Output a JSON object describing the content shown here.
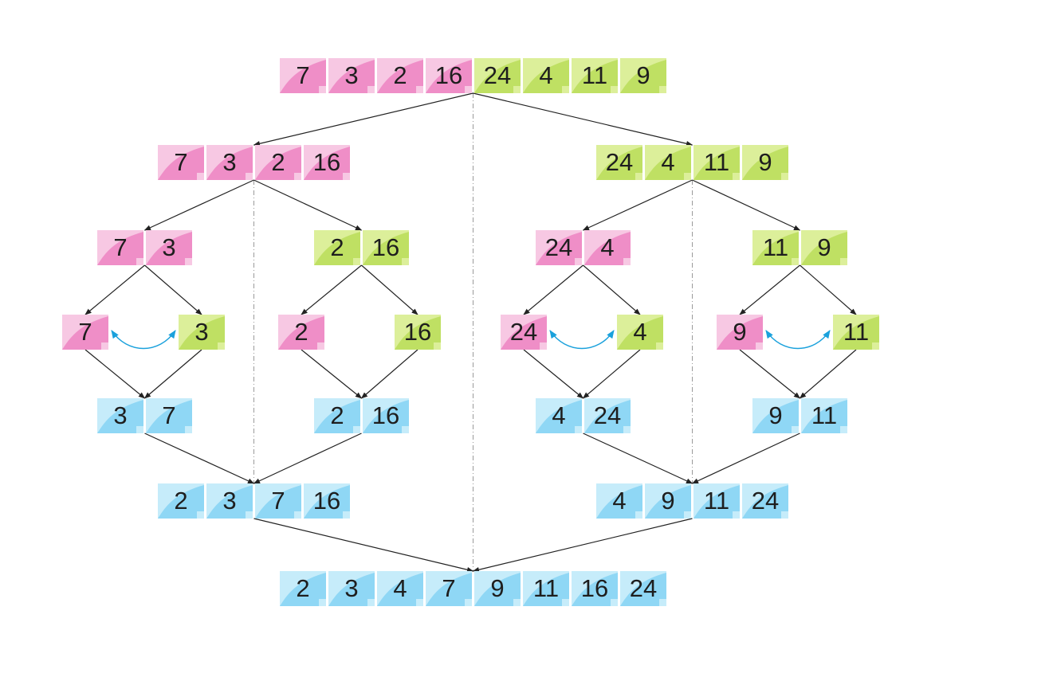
{
  "colors": {
    "pink_light": "#f7c8e3",
    "pink_dark": "#ef8ec7",
    "green_light": "#dcef9a",
    "green_dark": "#bfe063",
    "blue_light": "#c6ecfa",
    "blue_dark": "#8fd7f5",
    "arrow": "#222222",
    "divider": "#9a9a9a",
    "swap_arrow": "#1aa1dc"
  },
  "rows": {
    "input": {
      "cells": [
        {
          "v": "7",
          "c": "pink"
        },
        {
          "v": "3",
          "c": "pink"
        },
        {
          "v": "2",
          "c": "pink"
        },
        {
          "v": "16",
          "c": "pink"
        },
        {
          "v": "24",
          "c": "green"
        },
        {
          "v": "4",
          "c": "green"
        },
        {
          "v": "11",
          "c": "green"
        },
        {
          "v": "9",
          "c": "green"
        }
      ]
    },
    "split_left": {
      "cells": [
        {
          "v": "7",
          "c": "pink"
        },
        {
          "v": "3",
          "c": "pink"
        },
        {
          "v": "2",
          "c": "pink"
        },
        {
          "v": "16",
          "c": "pink"
        }
      ]
    },
    "split_right": {
      "cells": [
        {
          "v": "24",
          "c": "green"
        },
        {
          "v": "4",
          "c": "green"
        },
        {
          "v": "11",
          "c": "green"
        },
        {
          "v": "9",
          "c": "green"
        }
      ]
    },
    "pair_1": {
      "cells": [
        {
          "v": "7",
          "c": "pink"
        },
        {
          "v": "3",
          "c": "pink"
        }
      ]
    },
    "pair_2": {
      "cells": [
        {
          "v": "2",
          "c": "green"
        },
        {
          "v": "16",
          "c": "green"
        }
      ]
    },
    "pair_3": {
      "cells": [
        {
          "v": "24",
          "c": "pink"
        },
        {
          "v": "4",
          "c": "pink"
        }
      ]
    },
    "pair_4": {
      "cells": [
        {
          "v": "11",
          "c": "green"
        },
        {
          "v": "9",
          "c": "green"
        }
      ]
    },
    "single_1": {
      "cells": [
        {
          "v": "7",
          "c": "pink"
        }
      ]
    },
    "single_2": {
      "cells": [
        {
          "v": "3",
          "c": "green"
        }
      ]
    },
    "single_3": {
      "cells": [
        {
          "v": "2",
          "c": "pink"
        }
      ]
    },
    "single_4": {
      "cells": [
        {
          "v": "16",
          "c": "green"
        }
      ]
    },
    "single_5": {
      "cells": [
        {
          "v": "24",
          "c": "pink"
        }
      ]
    },
    "single_6": {
      "cells": [
        {
          "v": "4",
          "c": "green"
        }
      ]
    },
    "single_7": {
      "cells": [
        {
          "v": "9",
          "c": "pink"
        }
      ]
    },
    "single_8": {
      "cells": [
        {
          "v": "11",
          "c": "green"
        }
      ]
    },
    "merged_pair_1": {
      "cells": [
        {
          "v": "3",
          "c": "blue"
        },
        {
          "v": "7",
          "c": "blue"
        }
      ]
    },
    "merged_pair_2": {
      "cells": [
        {
          "v": "2",
          "c": "blue"
        },
        {
          "v": "16",
          "c": "blue"
        }
      ]
    },
    "merged_pair_3": {
      "cells": [
        {
          "v": "4",
          "c": "blue"
        },
        {
          "v": "24",
          "c": "blue"
        }
      ]
    },
    "merged_pair_4": {
      "cells": [
        {
          "v": "9",
          "c": "blue"
        },
        {
          "v": "11",
          "c": "blue"
        }
      ]
    },
    "merged_quad_left": {
      "cells": [
        {
          "v": "2",
          "c": "blue"
        },
        {
          "v": "3",
          "c": "blue"
        },
        {
          "v": "7",
          "c": "blue"
        },
        {
          "v": "16",
          "c": "blue"
        }
      ]
    },
    "merged_quad_right": {
      "cells": [
        {
          "v": "4",
          "c": "blue"
        },
        {
          "v": "9",
          "c": "blue"
        },
        {
          "v": "11",
          "c": "blue"
        },
        {
          "v": "24",
          "c": "blue"
        }
      ]
    },
    "output": {
      "cells": [
        {
          "v": "2",
          "c": "blue"
        },
        {
          "v": "3",
          "c": "blue"
        },
        {
          "v": "4",
          "c": "blue"
        },
        {
          "v": "7",
          "c": "blue"
        },
        {
          "v": "9",
          "c": "blue"
        },
        {
          "v": "11",
          "c": "blue"
        },
        {
          "v": "16",
          "c": "blue"
        },
        {
          "v": "24",
          "c": "blue"
        }
      ]
    }
  }
}
